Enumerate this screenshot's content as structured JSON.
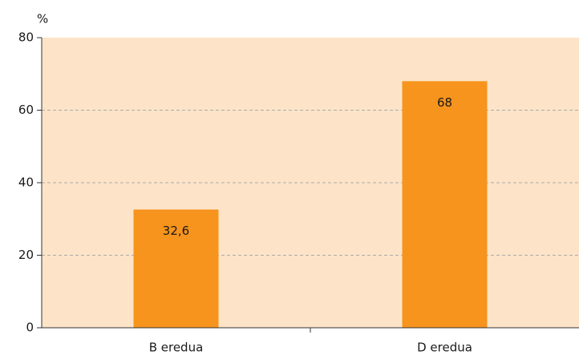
{
  "chart_data": {
    "type": "bar",
    "y_label": "%",
    "categories": [
      "B eredua",
      "D eredua"
    ],
    "values": [
      32.6,
      68
    ],
    "value_labels": [
      "32,6",
      "68"
    ],
    "color": "#f7941d",
    "background": "#fde4c8",
    "ylim": [
      0,
      80
    ],
    "yticks": [
      0,
      20,
      40,
      60,
      80
    ],
    "grid": true
  }
}
